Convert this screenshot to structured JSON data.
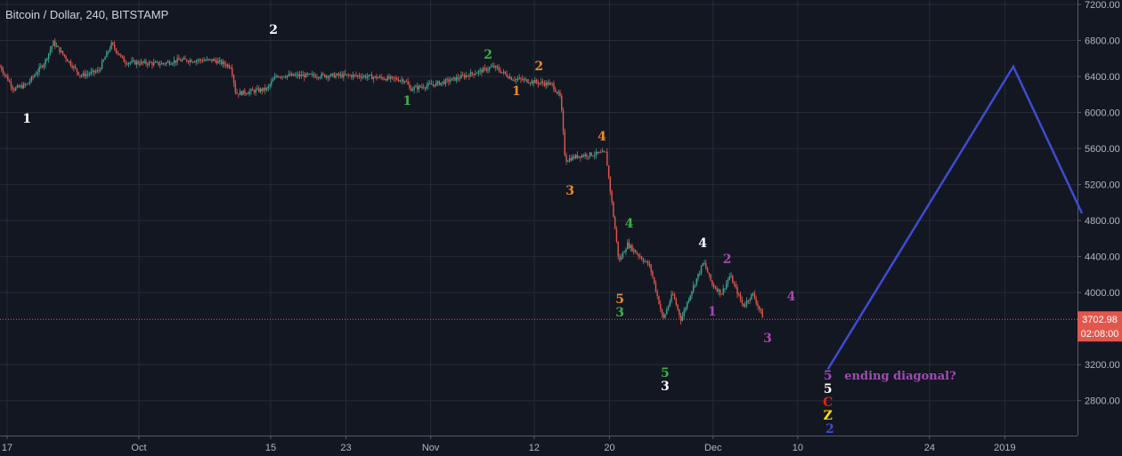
{
  "header": {
    "title": "Bitcoin / Dollar, 240, BITSTAMP"
  },
  "colors": {
    "background": "#131722",
    "grid": "#262a35",
    "up": "#3fa693",
    "down": "#e2574c",
    "projection": "#3f4bd0",
    "price_line": "#e2574c",
    "axis_text": "#b2b5be"
  },
  "chart_data": {
    "type": "candlestick",
    "title": "Bitcoin / Dollar, 240, BITSTAMP",
    "x_unit": "days since Sep 17, 2018",
    "ylim": [
      2400,
      7250
    ],
    "xlim": [
      -0.75,
      113.7
    ],
    "y_ticks": [
      7200,
      6800,
      6400,
      6000,
      5600,
      5200,
      4800,
      4400,
      4000,
      3200,
      2800
    ],
    "y_tick_labels": [
      "7200.00",
      "6800.00",
      "6400.00",
      "6000.00",
      "5600.00",
      "5200.00",
      "4800.00",
      "4400.00",
      "4000.00",
      "3200.00",
      "2800.00"
    ],
    "x_ticks": [
      0,
      14,
      28,
      36,
      45,
      56,
      64,
      75,
      84,
      98,
      106
    ],
    "x_tick_labels": [
      "17",
      "Oct",
      "15",
      "23",
      "Nov",
      "12",
      "20",
      "Dec",
      "10",
      "24",
      "2019"
    ],
    "price_path": [
      [
        -0.75,
        6510
      ],
      [
        0.7,
        6260
      ],
      [
        2.1,
        6310
      ],
      [
        4,
        6560
      ],
      [
        4.9,
        6775
      ],
      [
        7.8,
        6410
      ],
      [
        9.7,
        6460
      ],
      [
        11.1,
        6760
      ],
      [
        12.5,
        6560
      ],
      [
        16.3,
        6540
      ],
      [
        18.2,
        6580
      ],
      [
        22,
        6580
      ],
      [
        23.8,
        6510
      ],
      [
        24.3,
        6210
      ],
      [
        27.6,
        6260
      ],
      [
        28.6,
        6410
      ],
      [
        37.1,
        6410
      ],
      [
        42.3,
        6360
      ],
      [
        42.8,
        6260
      ],
      [
        46.5,
        6340
      ],
      [
        50.3,
        6460
      ],
      [
        51.7,
        6510
      ],
      [
        53.6,
        6380
      ],
      [
        57.9,
        6310
      ],
      [
        58.8,
        6165
      ],
      [
        59.3,
        5470
      ],
      [
        60.7,
        5520
      ],
      [
        63.6,
        5550
      ],
      [
        64.5,
        4780
      ],
      [
        65,
        4340
      ],
      [
        65.9,
        4540
      ],
      [
        68.3,
        4290
      ],
      [
        69.7,
        3700
      ],
      [
        70.7,
        3990
      ],
      [
        71.6,
        3700
      ],
      [
        72.6,
        3990
      ],
      [
        74,
        4340
      ],
      [
        74.9,
        4090
      ],
      [
        75.9,
        3990
      ],
      [
        76.8,
        4190
      ],
      [
        78.2,
        3850
      ],
      [
        79.2,
        3990
      ],
      [
        80.4,
        3703
      ]
    ],
    "last_price": {
      "value": "3702.98",
      "countdown": "02:08:00"
    },
    "projection": [
      [
        87.2,
        3150
      ],
      [
        106.9,
        6510
      ],
      [
        114.2,
        4880
      ]
    ],
    "annotations": [
      {
        "text": "1",
        "color": "#ffffff",
        "x": 2.1,
        "y": 5936
      },
      {
        "text": "2",
        "color": "#ffffff",
        "x": 28.3,
        "y": 6924
      },
      {
        "text": "1",
        "color": "#3fae4a",
        "x": 42.5,
        "y": 6134
      },
      {
        "text": "2",
        "color": "#3fae4a",
        "x": 51.1,
        "y": 6647
      },
      {
        "text": "1",
        "color": "#f08a24",
        "x": 54.1,
        "y": 6242
      },
      {
        "text": "2",
        "color": "#f08a24",
        "x": 56.5,
        "y": 6519
      },
      {
        "text": "3",
        "color": "#f08a24",
        "x": 59.8,
        "y": 5137
      },
      {
        "text": "4",
        "color": "#f08a24",
        "x": 63.2,
        "y": 5739
      },
      {
        "text": "4",
        "color": "#3fae4a",
        "x": 66.1,
        "y": 4772
      },
      {
        "text": "5",
        "color": "#f08a24",
        "x": 65.1,
        "y": 3932
      },
      {
        "text": "3",
        "color": "#3fae4a",
        "x": 65.1,
        "y": 3804
      },
      {
        "text": "5",
        "color": "#3fae4a",
        "x": 69.9,
        "y": 3113
      },
      {
        "text": "3",
        "color": "#ffffff",
        "x": 69.9,
        "y": 2995
      },
      {
        "text": "4",
        "color": "#ffffff",
        "x": 73.9,
        "y": 4554
      },
      {
        "text": "2",
        "color": "#a549b5",
        "x": 76.5,
        "y": 4377
      },
      {
        "text": "1",
        "color": "#a549b5",
        "x": 74.9,
        "y": 3794
      },
      {
        "text": "4",
        "color": "#a549b5",
        "x": 83.3,
        "y": 3962
      },
      {
        "text": "3",
        "color": "#a549b5",
        "x": 80.8,
        "y": 3498
      },
      {
        "text": "5",
        "color": "#a549b5",
        "x": 87.2,
        "y": 3084
      },
      {
        "text": "ending diagonal?",
        "color": "#a549b5",
        "x": 88.2,
        "y": 3084,
        "anchor": "start"
      },
      {
        "text": "5",
        "color": "#ffffff",
        "x": 87.2,
        "y": 2966
      },
      {
        "text": "C",
        "color": "#e2231a",
        "x": 87.2,
        "y": 2837
      },
      {
        "text": "Z",
        "color": "#ffe100",
        "x": 87.2,
        "y": 2738
      },
      {
        "text": "2",
        "color": "#3f4bd0",
        "x": 87.4,
        "y": 2620
      }
    ]
  }
}
